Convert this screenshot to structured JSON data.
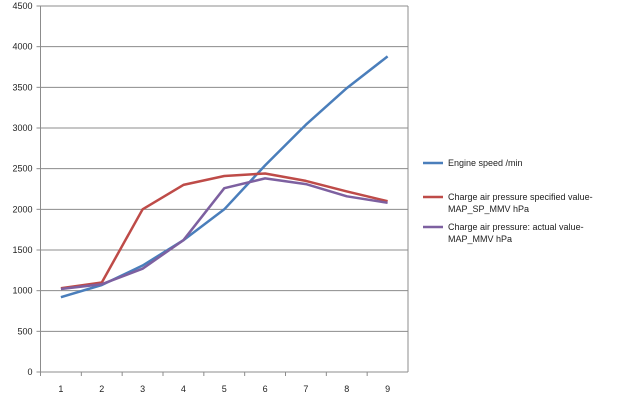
{
  "chart_data": {
    "type": "line",
    "categories": [
      "1",
      "2",
      "3",
      "4",
      "5",
      "6",
      "7",
      "8",
      "9"
    ],
    "series": [
      {
        "name": "Engine speed  /min",
        "color": "#4a7ebb",
        "values": [
          920,
          1070,
          1310,
          1620,
          2000,
          2540,
          3040,
          3490,
          3880
        ]
      },
      {
        "name": "Charge air pressure specified value-MAP_SP_MMV  hPa",
        "color": "#be4b48",
        "values": [
          1030,
          1100,
          2000,
          2300,
          2410,
          2440,
          2350,
          2220,
          2100
        ]
      },
      {
        "name": "Charge air pressure: actual value-MAP_MMV hPa",
        "color": "#7d60a0",
        "values": [
          1020,
          1080,
          1270,
          1620,
          2260,
          2380,
          2310,
          2160,
          2080
        ]
      }
    ],
    "ylim": [
      0,
      4500
    ],
    "yticks": [
      0,
      500,
      1000,
      1500,
      2000,
      2500,
      3000,
      3500,
      4000,
      4500
    ],
    "grid": true,
    "legend": "right"
  }
}
